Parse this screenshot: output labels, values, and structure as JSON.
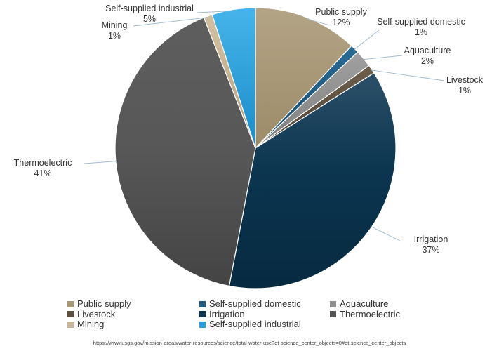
{
  "chart_data": {
    "type": "pie",
    "title": "",
    "slices": [
      {
        "name": "Public supply",
        "value": 12,
        "label": "12%",
        "color": "#a89876"
      },
      {
        "name": "Self-supplied domestic",
        "value": 1,
        "label": "1%",
        "color": "#1e5a82"
      },
      {
        "name": "Aquaculture",
        "value": 2,
        "label": "2%",
        "color": "#8e8e8e"
      },
      {
        "name": "Livestock",
        "value": 1,
        "label": "1%",
        "color": "#5e5040"
      },
      {
        "name": "Irrigation",
        "value": 37,
        "label": "37%",
        "color": "#0d3550"
      },
      {
        "name": "Thermoelectric",
        "value": 41,
        "label": "41%",
        "color": "#555555"
      },
      {
        "name": "Mining",
        "value": 1,
        "label": "1%",
        "color": "#c8b496"
      },
      {
        "name": "Self-supplied industrial",
        "value": 5,
        "label": "5%",
        "color": "#2aa0dc"
      }
    ],
    "legend_position": "bottom"
  },
  "source": "https://www.usgs.gov/mission-areas/water-resources/science/total-water-use?qt-science_center_objects=0#qt-science_center_objects"
}
